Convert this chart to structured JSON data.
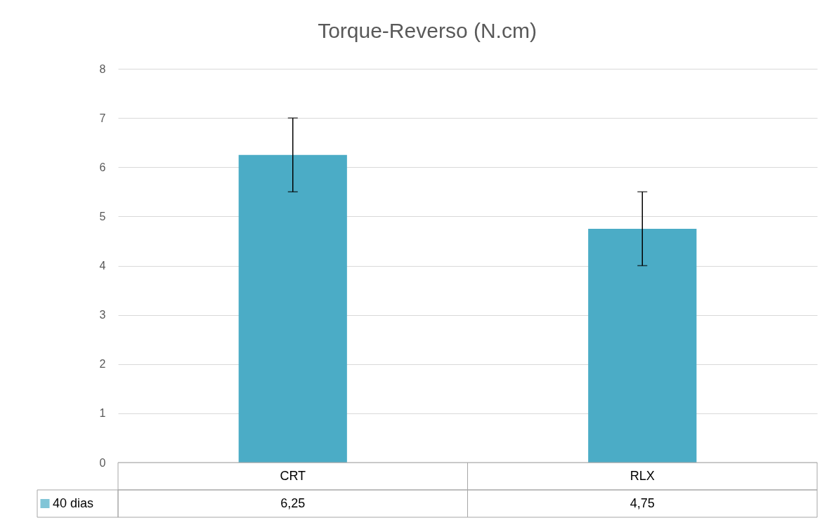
{
  "chart_data": {
    "type": "bar",
    "title": "Torque-Reverso (N.cm)",
    "categories": [
      "CRT",
      "RLX"
    ],
    "series": [
      {
        "name": "40 dias",
        "color": "#4bacc6",
        "values": [
          6.25,
          4.75
        ],
        "value_labels": [
          "6,25",
          "4,75"
        ],
        "errors": [
          0.75,
          0.75
        ]
      }
    ],
    "ylim": [
      0,
      8
    ],
    "yticks": [
      0,
      1,
      2,
      3,
      4,
      5,
      6,
      7,
      8
    ],
    "grid": "y",
    "legend": "bottom"
  }
}
